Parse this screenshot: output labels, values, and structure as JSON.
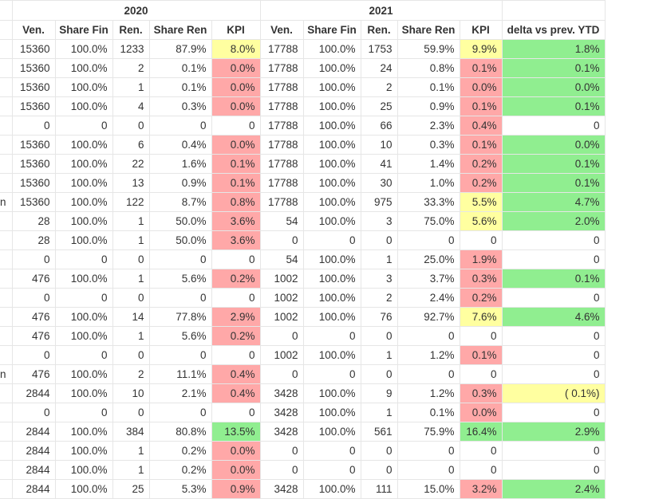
{
  "header": {
    "year1": "2020",
    "year2": "2021",
    "columns": [
      "Ven.",
      "Share Fin",
      "Ren.",
      "Share Ren",
      "KPI",
      "Ven.",
      "Share Fin",
      "Ren.",
      "Share Ren",
      "KPI",
      "delta vs prev. YTD"
    ]
  },
  "colors": {
    "yellow": "#ffffa0",
    "red": "#ffa8a8",
    "green": "#90ee90"
  },
  "rows": [
    {
      "label": "",
      "cells": [
        "15360",
        "100.0%",
        "1233",
        "87.9%",
        "8.0%",
        "17788",
        "100.0%",
        "1753",
        "59.9%",
        "9.9%",
        "1.8%"
      ],
      "status": [
        "y",
        "y",
        "g"
      ]
    },
    {
      "label": "",
      "cells": [
        "15360",
        "100.0%",
        "2",
        "0.1%",
        "0.0%",
        "17788",
        "100.0%",
        "24",
        "0.8%",
        "0.1%",
        "0.1%"
      ],
      "status": [
        "r",
        "r",
        "g"
      ]
    },
    {
      "label": "",
      "cells": [
        "15360",
        "100.0%",
        "1",
        "0.1%",
        "0.0%",
        "17788",
        "100.0%",
        "2",
        "0.1%",
        "0.0%",
        "0.0%"
      ],
      "status": [
        "r",
        "r",
        "g"
      ]
    },
    {
      "label": "",
      "cells": [
        "15360",
        "100.0%",
        "4",
        "0.3%",
        "0.0%",
        "17788",
        "100.0%",
        "25",
        "0.9%",
        "0.1%",
        "0.1%"
      ],
      "status": [
        "r",
        "r",
        "g"
      ]
    },
    {
      "label": "",
      "cells": [
        "0",
        "0",
        "0",
        "0",
        "0",
        "17788",
        "100.0%",
        "66",
        "2.3%",
        "0.4%",
        "0"
      ],
      "status": [
        "",
        "r",
        ""
      ]
    },
    {
      "label": "",
      "cells": [
        "15360",
        "100.0%",
        "6",
        "0.4%",
        "0.0%",
        "17788",
        "100.0%",
        "10",
        "0.3%",
        "0.1%",
        "0.0%"
      ],
      "status": [
        "r",
        "r",
        "g"
      ]
    },
    {
      "label": "",
      "cells": [
        "15360",
        "100.0%",
        "22",
        "1.6%",
        "0.1%",
        "17788",
        "100.0%",
        "41",
        "1.4%",
        "0.2%",
        "0.1%"
      ],
      "status": [
        "r",
        "r",
        "g"
      ]
    },
    {
      "label": "",
      "cells": [
        "15360",
        "100.0%",
        "13",
        "0.9%",
        "0.1%",
        "17788",
        "100.0%",
        "30",
        "1.0%",
        "0.2%",
        "0.1%"
      ],
      "status": [
        "r",
        "r",
        "g"
      ]
    },
    {
      "label": "n",
      "cells": [
        "15360",
        "100.0%",
        "122",
        "8.7%",
        "0.8%",
        "17788",
        "100.0%",
        "975",
        "33.3%",
        "5.5%",
        "4.7%"
      ],
      "status": [
        "r",
        "y",
        "g"
      ]
    },
    {
      "label": "",
      "cells": [
        "28",
        "100.0%",
        "1",
        "50.0%",
        "3.6%",
        "54",
        "100.0%",
        "3",
        "75.0%",
        "5.6%",
        "2.0%"
      ],
      "status": [
        "r",
        "y",
        "g"
      ]
    },
    {
      "label": "",
      "cells": [
        "28",
        "100.0%",
        "1",
        "50.0%",
        "3.6%",
        "0",
        "0",
        "0",
        "0",
        "0",
        "0"
      ],
      "status": [
        "r",
        "",
        ""
      ]
    },
    {
      "label": "",
      "cells": [
        "0",
        "0",
        "0",
        "0",
        "0",
        "54",
        "100.0%",
        "1",
        "25.0%",
        "1.9%",
        "0"
      ],
      "status": [
        "",
        "r",
        ""
      ]
    },
    {
      "label": "",
      "cells": [
        "476",
        "100.0%",
        "1",
        "5.6%",
        "0.2%",
        "1002",
        "100.0%",
        "3",
        "3.7%",
        "0.3%",
        "0.1%"
      ],
      "status": [
        "r",
        "r",
        "g"
      ]
    },
    {
      "label": "",
      "cells": [
        "0",
        "0",
        "0",
        "0",
        "0",
        "1002",
        "100.0%",
        "2",
        "2.4%",
        "0.2%",
        "0"
      ],
      "status": [
        "",
        "r",
        ""
      ]
    },
    {
      "label": "",
      "cells": [
        "476",
        "100.0%",
        "14",
        "77.8%",
        "2.9%",
        "1002",
        "100.0%",
        "76",
        "92.7%",
        "7.6%",
        "4.6%"
      ],
      "status": [
        "r",
        "y",
        "g"
      ]
    },
    {
      "label": "",
      "cells": [
        "476",
        "100.0%",
        "1",
        "5.6%",
        "0.2%",
        "0",
        "0",
        "0",
        "0",
        "0",
        "0"
      ],
      "status": [
        "r",
        "",
        ""
      ]
    },
    {
      "label": "",
      "cells": [
        "0",
        "0",
        "0",
        "0",
        "0",
        "1002",
        "100.0%",
        "1",
        "1.2%",
        "0.1%",
        "0"
      ],
      "status": [
        "",
        "r",
        ""
      ]
    },
    {
      "label": "n",
      "cells": [
        "476",
        "100.0%",
        "2",
        "11.1%",
        "0.4%",
        "0",
        "0",
        "0",
        "0",
        "0",
        "0"
      ],
      "status": [
        "r",
        "",
        ""
      ]
    },
    {
      "label": "",
      "cells": [
        "2844",
        "100.0%",
        "10",
        "2.1%",
        "0.4%",
        "3428",
        "100.0%",
        "9",
        "1.2%",
        "0.3%",
        "( 0.1%)"
      ],
      "status": [
        "r",
        "r",
        "y"
      ]
    },
    {
      "label": "",
      "cells": [
        "0",
        "0",
        "0",
        "0",
        "0",
        "3428",
        "100.0%",
        "1",
        "0.1%",
        "0.0%",
        "0"
      ],
      "status": [
        "",
        "r",
        ""
      ]
    },
    {
      "label": "",
      "cells": [
        "2844",
        "100.0%",
        "384",
        "80.8%",
        "13.5%",
        "3428",
        "100.0%",
        "561",
        "75.9%",
        "16.4%",
        "2.9%"
      ],
      "status": [
        "g",
        "g",
        "g"
      ]
    },
    {
      "label": "",
      "cells": [
        "2844",
        "100.0%",
        "1",
        "0.2%",
        "0.0%",
        "0",
        "0",
        "0",
        "0",
        "0",
        "0"
      ],
      "status": [
        "r",
        "",
        ""
      ]
    },
    {
      "label": "",
      "cells": [
        "2844",
        "100.0%",
        "1",
        "0.2%",
        "0.0%",
        "0",
        "0",
        "0",
        "0",
        "0",
        "0"
      ],
      "status": [
        "r",
        "",
        ""
      ]
    },
    {
      "label": "",
      "cells": [
        "2844",
        "100.0%",
        "25",
        "5.3%",
        "0.9%",
        "3428",
        "100.0%",
        "111",
        "15.0%",
        "3.2%",
        "2.4%"
      ],
      "status": [
        "r",
        "r",
        "g"
      ]
    }
  ]
}
